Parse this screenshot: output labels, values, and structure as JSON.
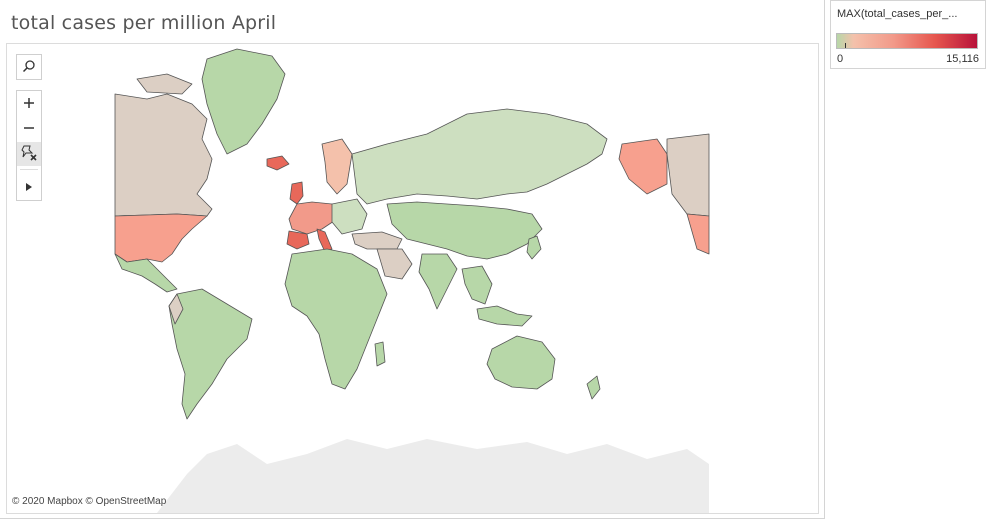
{
  "title": "total cases per million April",
  "attribution": "© 2020 Mapbox © OpenStreetMap",
  "legend": {
    "title": "MAX(total_cases_per_...",
    "min_label": "0",
    "max_label": "15,116",
    "min_value": 0,
    "max_value": 15116
  },
  "colors": {
    "low": "#b7d7a8",
    "mid": "#f29a8a",
    "high": "#b8123a",
    "no_data": "#dccfc4",
    "border": "#555555",
    "ocean": "#ffffff",
    "background_land": "#ececec"
  },
  "toolbar": {
    "search_icon": "search-icon",
    "zoom_in_icon": "plus-icon",
    "zoom_out_icon": "minus-icon",
    "pin_icon": "pin-reset-icon",
    "expand_icon": "play-arrow-icon"
  }
}
